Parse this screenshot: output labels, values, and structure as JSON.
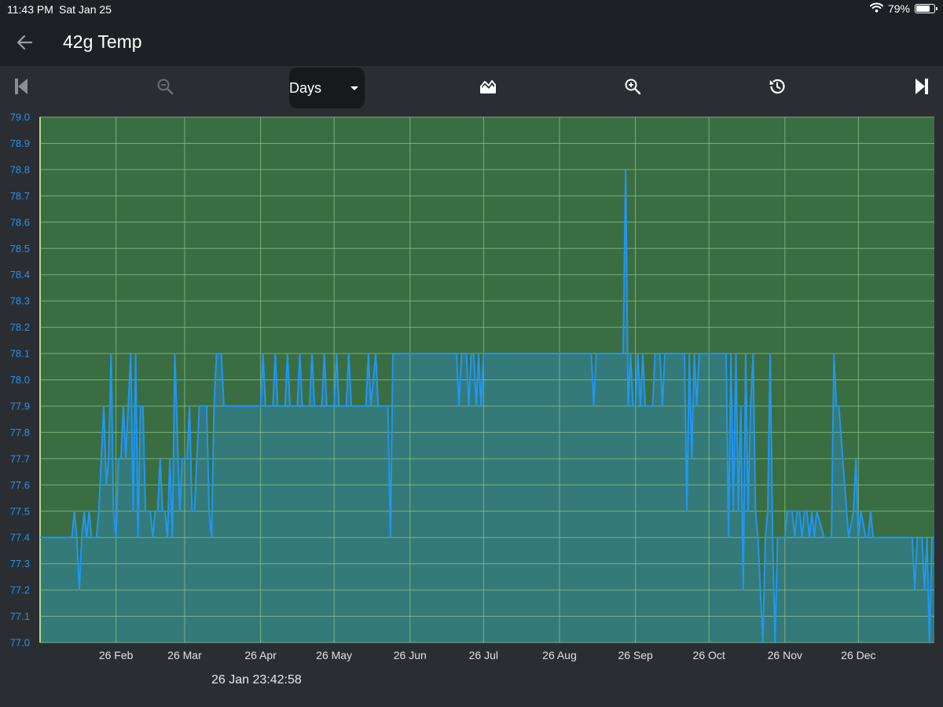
{
  "status_bar": {
    "time": "11:43 PM",
    "date": "Sat Jan 25",
    "battery_percent": "79%",
    "battery_level": 0.79,
    "icons": [
      "wifi-icon",
      "battery-icon"
    ]
  },
  "header": {
    "title": "42g Temp",
    "back_icon": "arrow-left-icon"
  },
  "toolbar": {
    "range_select": {
      "value": "Days"
    },
    "buttons": [
      {
        "name": "skip-to-start-button",
        "icon": "skip-start-icon"
      },
      {
        "name": "zoom-out-button",
        "icon": "zoom-out-icon"
      },
      {
        "name": "chart-style-button",
        "icon": "area-chart-icon"
      },
      {
        "name": "zoom-in-button",
        "icon": "zoom-in-icon"
      },
      {
        "name": "history-button",
        "icon": "history-icon"
      },
      {
        "name": "skip-to-end-button",
        "icon": "skip-end-icon"
      }
    ]
  },
  "colors": {
    "background": "#2a2e33",
    "plot_background": "#3a6e42",
    "grid": "#93c98e",
    "line": "#2196f3",
    "area_fill": "#347a78",
    "axis_text": "#2b90e6"
  },
  "chart_data": {
    "type": "area",
    "ylim": [
      77.0,
      79.0
    ],
    "y_ticks": [
      "77.0",
      "77.1",
      "77.2",
      "77.3",
      "77.4",
      "77.5",
      "77.6",
      "77.7",
      "77.8",
      "77.9",
      "78.0",
      "78.1",
      "78.2",
      "78.3",
      "78.4",
      "78.5",
      "78.6",
      "78.7",
      "78.8",
      "78.9",
      "79.0"
    ],
    "x_tick_labels": [
      "26 Feb",
      "26 Mar",
      "26 Apr",
      "26 May",
      "26 Jun",
      "26 Jul",
      "26 Aug",
      "26 Sep",
      "26 Oct",
      "26 Nov",
      "26 Dec"
    ],
    "x_tick_days": [
      31,
      59,
      90,
      120,
      151,
      181,
      212,
      243,
      273,
      304,
      334
    ],
    "x_range_days": [
      0,
      365
    ],
    "grid": true,
    "points": [
      [
        0,
        77.4
      ],
      [
        5,
        77.4
      ],
      [
        10,
        77.4
      ],
      [
        13,
        77.4
      ],
      [
        14,
        77.5
      ],
      [
        15,
        77.4
      ],
      [
        16,
        77.2
      ],
      [
        17,
        77.4
      ],
      [
        18,
        77.5
      ],
      [
        19,
        77.4
      ],
      [
        20,
        77.5
      ],
      [
        21,
        77.4
      ],
      [
        23,
        77.4
      ],
      [
        24,
        77.5
      ],
      [
        25,
        77.7
      ],
      [
        26,
        77.9
      ],
      [
        27,
        77.6
      ],
      [
        28,
        77.7
      ],
      [
        29,
        78.1
      ],
      [
        30,
        77.5
      ],
      [
        31,
        77.4
      ],
      [
        32,
        77.7
      ],
      [
        33,
        77.7
      ],
      [
        34,
        77.9
      ],
      [
        35,
        77.7
      ],
      [
        36,
        77.9
      ],
      [
        37,
        78.1
      ],
      [
        38,
        77.5
      ],
      [
        39,
        78.1
      ],
      [
        40,
        77.4
      ],
      [
        41,
        77.9
      ],
      [
        42,
        77.9
      ],
      [
        43,
        77.5
      ],
      [
        45,
        77.5
      ],
      [
        46,
        77.4
      ],
      [
        47,
        77.5
      ],
      [
        48,
        77.5
      ],
      [
        49,
        77.7
      ],
      [
        50,
        77.5
      ],
      [
        51,
        77.5
      ],
      [
        52,
        77.4
      ],
      [
        53,
        77.7
      ],
      [
        54,
        77.4
      ],
      [
        55,
        78.1
      ],
      [
        57,
        77.5
      ],
      [
        58,
        77.7
      ],
      [
        60,
        77.7
      ],
      [
        61,
        77.9
      ],
      [
        62,
        77.5
      ],
      [
        63,
        77.5
      ],
      [
        65,
        77.9
      ],
      [
        68,
        77.9
      ],
      [
        69,
        77.5
      ],
      [
        70,
        77.4
      ],
      [
        71,
        77.9
      ],
      [
        72,
        78.1
      ],
      [
        74,
        78.1
      ],
      [
        75,
        77.9
      ],
      [
        78,
        77.9
      ],
      [
        80,
        77.9
      ],
      [
        85,
        77.9
      ],
      [
        90,
        77.9
      ],
      [
        91,
        78.1
      ],
      [
        92,
        77.9
      ],
      [
        95,
        77.9
      ],
      [
        96,
        78.1
      ],
      [
        97,
        77.9
      ],
      [
        100,
        77.9
      ],
      [
        101,
        78.1
      ],
      [
        102,
        77.9
      ],
      [
        105,
        77.9
      ],
      [
        106,
        78.1
      ],
      [
        107,
        77.9
      ],
      [
        110,
        77.9
      ],
      [
        111,
        78.1
      ],
      [
        112,
        77.9
      ],
      [
        115,
        77.9
      ],
      [
        116,
        78.1
      ],
      [
        117,
        77.9
      ],
      [
        120,
        77.9
      ],
      [
        121,
        78.1
      ],
      [
        122,
        77.9
      ],
      [
        125,
        77.9
      ],
      [
        126,
        78.1
      ],
      [
        127,
        77.9
      ],
      [
        132,
        77.9
      ],
      [
        133,
        77.9
      ],
      [
        134,
        78.1
      ],
      [
        135,
        77.9
      ],
      [
        137,
        78.1
      ],
      [
        138,
        77.9
      ],
      [
        140,
        77.9
      ],
      [
        142,
        77.9
      ],
      [
        143,
        77.4
      ],
      [
        144,
        78.1
      ],
      [
        146,
        78.1
      ],
      [
        150,
        78.1
      ],
      [
        155,
        78.1
      ],
      [
        160,
        78.1
      ],
      [
        165,
        78.1
      ],
      [
        170,
        78.1
      ],
      [
        171,
        77.9
      ],
      [
        172,
        78.1
      ],
      [
        174,
        78.1
      ],
      [
        175,
        77.9
      ],
      [
        176,
        78.1
      ],
      [
        177,
        78.1
      ],
      [
        178,
        77.9
      ],
      [
        179,
        78.1
      ],
      [
        180,
        77.9
      ],
      [
        181,
        78.1
      ],
      [
        185,
        78.1
      ],
      [
        190,
        78.1
      ],
      [
        195,
        78.1
      ],
      [
        200,
        78.1
      ],
      [
        205,
        78.1
      ],
      [
        210,
        78.1
      ],
      [
        215,
        78.1
      ],
      [
        220,
        78.1
      ],
      [
        225,
        78.1
      ],
      [
        226,
        77.9
      ],
      [
        227,
        78.1
      ],
      [
        230,
        78.1
      ],
      [
        235,
        78.1
      ],
      [
        238,
        78.1
      ],
      [
        239,
        78.8
      ],
      [
        240,
        77.9
      ],
      [
        241,
        78.1
      ],
      [
        242,
        77.9
      ],
      [
        243,
        77.9
      ],
      [
        244,
        78.1
      ],
      [
        245,
        77.9
      ],
      [
        246,
        78.1
      ],
      [
        247,
        77.9
      ],
      [
        250,
        77.9
      ],
      [
        251,
        78.1
      ],
      [
        253,
        78.1
      ],
      [
        254,
        77.9
      ],
      [
        255,
        78.1
      ],
      [
        258,
        78.1
      ],
      [
        263,
        78.1
      ],
      [
        264,
        77.5
      ],
      [
        265,
        78.1
      ],
      [
        266,
        77.7
      ],
      [
        267,
        78.1
      ],
      [
        268,
        77.9
      ],
      [
        269,
        78.1
      ],
      [
        275,
        78.1
      ],
      [
        280,
        78.1
      ],
      [
        281,
        77.4
      ],
      [
        282,
        78.1
      ],
      [
        283,
        77.5
      ],
      [
        284,
        78.1
      ],
      [
        285,
        77.5
      ],
      [
        286,
        77.9
      ],
      [
        287,
        77.2
      ],
      [
        288,
        78.1
      ],
      [
        289,
        77.5
      ],
      [
        290,
        77.9
      ],
      [
        291,
        78.1
      ],
      [
        292,
        77.5
      ],
      [
        293,
        77.4
      ],
      [
        294,
        77.2
      ],
      [
        295,
        77.0
      ],
      [
        296,
        77.4
      ],
      [
        297,
        77.5
      ],
      [
        298,
        78.1
      ],
      [
        299,
        77.4
      ],
      [
        300,
        77.0
      ],
      [
        301,
        77.4
      ],
      [
        304,
        77.4
      ],
      [
        305,
        77.5
      ],
      [
        307,
        77.5
      ],
      [
        308,
        77.4
      ],
      [
        309,
        77.5
      ],
      [
        310,
        77.5
      ],
      [
        311,
        77.4
      ],
      [
        312,
        77.5
      ],
      [
        313,
        77.5
      ],
      [
        314,
        77.4
      ],
      [
        315,
        77.5
      ],
      [
        316,
        77.4
      ],
      [
        317,
        77.5
      ],
      [
        320,
        77.4
      ],
      [
        323,
        77.4
      ],
      [
        324,
        78.1
      ],
      [
        325,
        77.9
      ],
      [
        326,
        77.9
      ],
      [
        330,
        77.4
      ],
      [
        332,
        77.5
      ],
      [
        333,
        77.7
      ],
      [
        334,
        77.4
      ],
      [
        335,
        77.5
      ],
      [
        337,
        77.4
      ],
      [
        338,
        77.4
      ],
      [
        339,
        77.5
      ],
      [
        340,
        77.4
      ],
      [
        345,
        77.4
      ],
      [
        350,
        77.4
      ],
      [
        356,
        77.4
      ],
      [
        357,
        77.2
      ],
      [
        358,
        77.4
      ],
      [
        359,
        77.4
      ],
      [
        360,
        77.4
      ],
      [
        361,
        77.2
      ],
      [
        362,
        77.4
      ],
      [
        363,
        77.0
      ],
      [
        364,
        77.4
      ],
      [
        365,
        77.4
      ]
    ]
  },
  "footer": {
    "timestamp": "26 Jan 23:42:58"
  }
}
